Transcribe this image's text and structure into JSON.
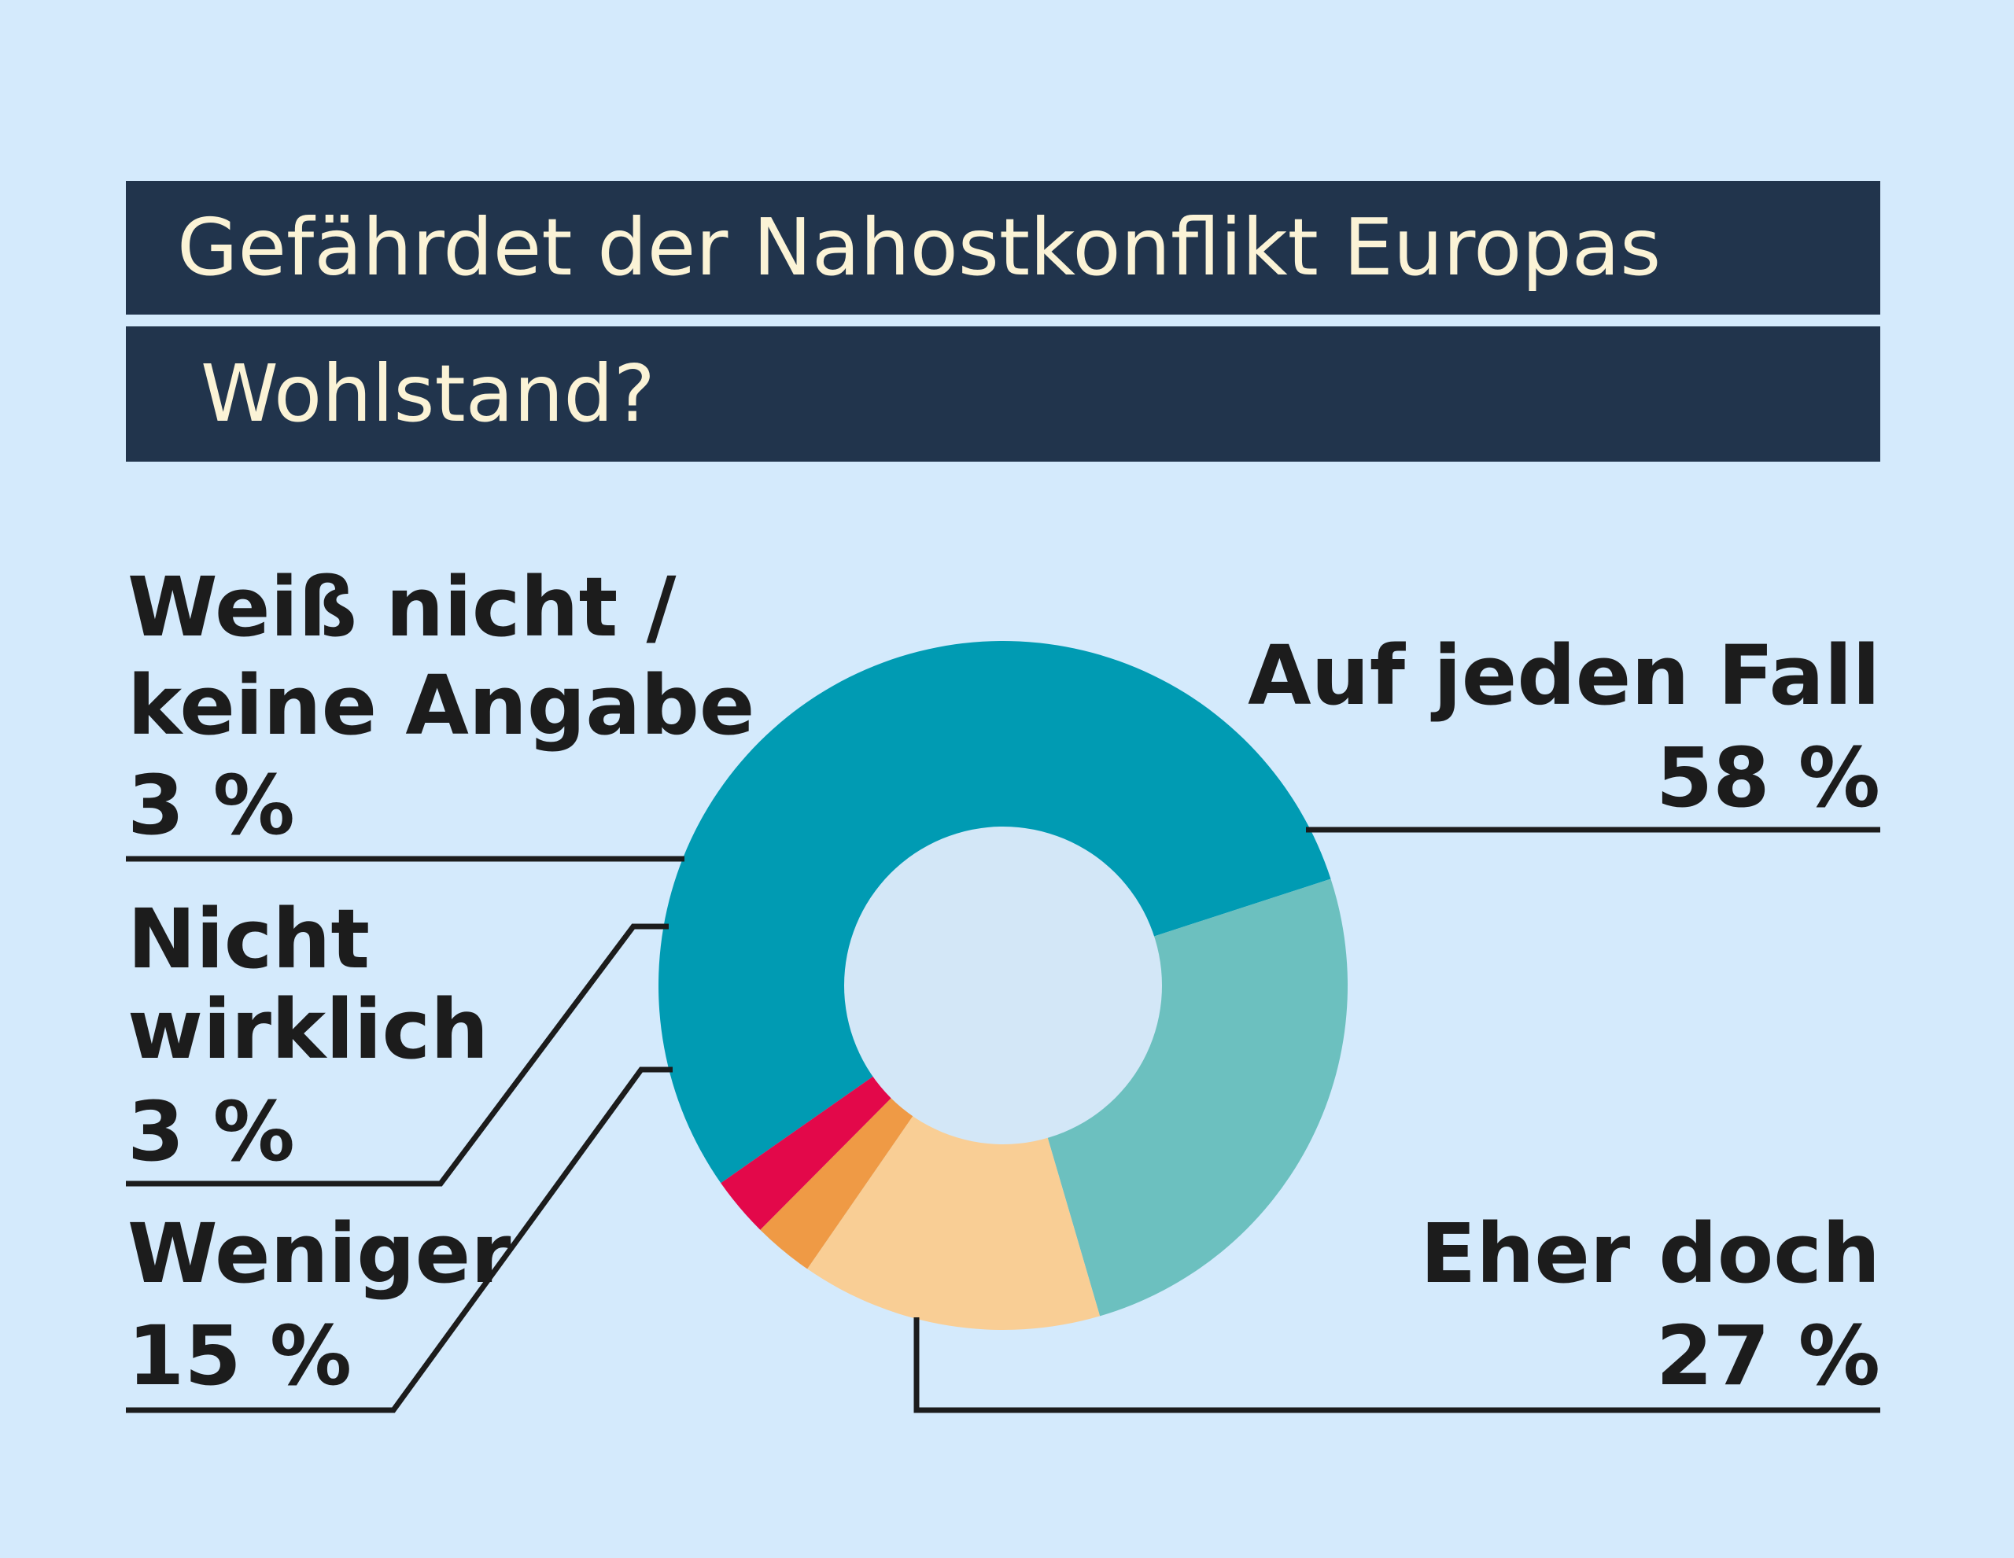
{
  "header": {
    "title_line_1": "Gefährdet der Nahostkonflikt Europas",
    "title_line_2": "Wohlstand?"
  },
  "colors": {
    "background": "#d4eafc",
    "title_bar": "#21344c",
    "title_text": "#fbf3d6",
    "hole": "#d3e7f7"
  },
  "chart_data": {
    "type": "pie",
    "title": "Gefährdet der Nahostkonflikt Europas Wohlstand?",
    "slices": [
      {
        "label_lines": [
          "Auf jeden Fall"
        ],
        "value": 58,
        "value_label": "58 %",
        "color": "#009bb3"
      },
      {
        "label_lines": [
          "Eher doch"
        ],
        "value": 27,
        "value_label": "27 %",
        "color": "#6cc0bf"
      },
      {
        "label_lines": [
          "Weniger"
        ],
        "value": 15,
        "value_label": "15 %",
        "color": "#f9ce95"
      },
      {
        "label_lines": [
          "Nicht",
          "wirklich"
        ],
        "value": 3,
        "value_label": "3 %",
        "color": "#ef9a45"
      },
      {
        "label_lines": [
          "Weiß nicht /",
          "keine Angabe"
        ],
        "value": 3,
        "value_label": "3 %",
        "color": "#e3084a"
      }
    ]
  }
}
